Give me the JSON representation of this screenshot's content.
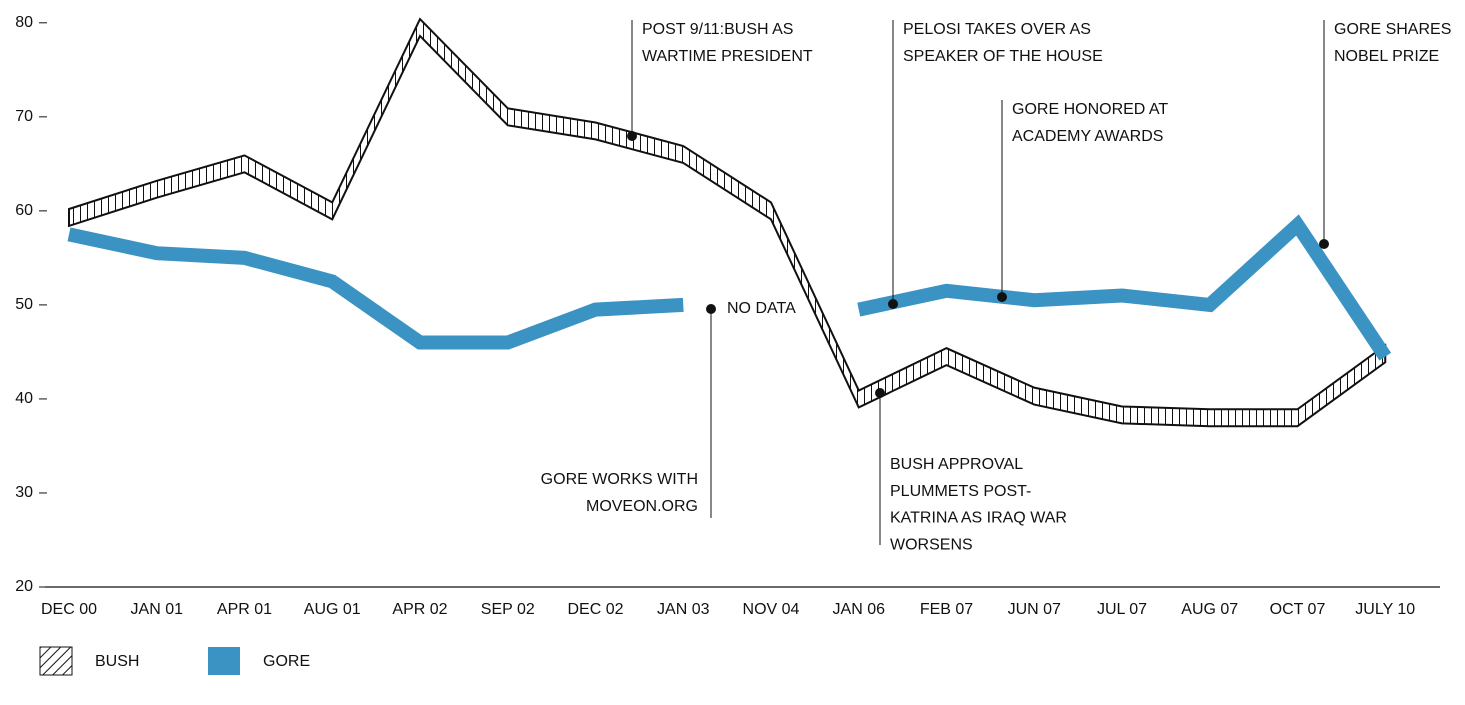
{
  "chart_data": {
    "type": "line",
    "categories": [
      "DEC 00",
      "JAN 01",
      "APR 01",
      "AUG 01",
      "APR 02",
      "SEP 02",
      "DEC 02",
      "JAN 03",
      "NOV 04",
      "JAN 06",
      "FEB 07",
      "JUN 07",
      "JUL 07",
      "AUG 07",
      "OCT 07",
      "JULY 10"
    ],
    "series": [
      {
        "name": "BUSH",
        "color": "#111111",
        "values": [
          59.3,
          62.3,
          65,
          60,
          79.5,
          70,
          68.5,
          66,
          60,
          40,
          44.5,
          40.3,
          38.3,
          38,
          38,
          44.8
        ]
      },
      {
        "name": "GORE",
        "color": "#3a93c3",
        "values": [
          57.5,
          55.5,
          55,
          52.5,
          46,
          46,
          49.5,
          50,
          null,
          49.5,
          51.5,
          50.5,
          51,
          50,
          58.5,
          44.5
        ]
      }
    ],
    "ylim": [
      20,
      82
    ],
    "yticks": [
      20,
      30,
      40,
      50,
      60,
      70,
      80
    ],
    "annotations": [
      {
        "text": [
          "POST 9/11:BUSH AS",
          "WARTIME PRESIDENT"
        ]
      },
      {
        "text": [
          "PELOSI TAKES OVER AS",
          "SPEAKER OF THE HOUSE"
        ]
      },
      {
        "text": [
          "GORE HONORED AT",
          "ACADEMY AWARDS"
        ]
      },
      {
        "text": [
          "GORE SHARES",
          "NOBEL PRIZE"
        ]
      },
      {
        "text": [
          "NO DATA"
        ]
      },
      {
        "text": [
          "GORE WORKS WITH",
          "MOVEON.ORG"
        ]
      },
      {
        "text": [
          "BUSH APPROVAL",
          "PLUMMETS POST-",
          "KATRINA AS IRAQ WAR",
          "WORSENS"
        ]
      }
    ]
  }
}
